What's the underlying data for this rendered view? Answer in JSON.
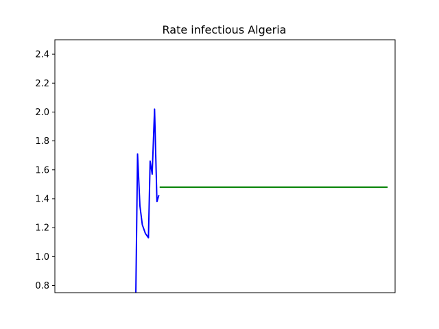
{
  "chart_data": {
    "type": "line",
    "title": "Rate infectious Algeria",
    "xlabel": "",
    "ylabel": "",
    "xlim": [
      0,
      100
    ],
    "ylim": [
      0.75,
      2.5
    ],
    "yticks": [
      0.8,
      1.0,
      1.2,
      1.4,
      1.6,
      1.8,
      2.0,
      2.2,
      2.4
    ],
    "ytick_labels": [
      "0.8",
      "1.0",
      "1.2",
      "1.4",
      "1.6",
      "1.8",
      "2.0",
      "2.2",
      "2.4"
    ],
    "xticks_visible": false,
    "grid": false,
    "series": [
      {
        "color": "#0000ff",
        "points": [
          {
            "x": 23.8,
            "y": 0.75
          },
          {
            "x": 24.3,
            "y": 1.71
          },
          {
            "x": 25.0,
            "y": 1.35
          },
          {
            "x": 25.7,
            "y": 1.22
          },
          {
            "x": 26.6,
            "y": 1.16
          },
          {
            "x": 27.5,
            "y": 1.13
          },
          {
            "x": 28.0,
            "y": 1.66
          },
          {
            "x": 28.6,
            "y": 1.57
          },
          {
            "x": 29.3,
            "y": 2.02
          },
          {
            "x": 30.0,
            "y": 1.38
          },
          {
            "x": 30.5,
            "y": 1.42
          }
        ]
      },
      {
        "color": "#008000",
        "points": [
          {
            "x": 31.0,
            "y": 1.48
          },
          {
            "x": 97.6,
            "y": 1.48
          }
        ]
      }
    ]
  }
}
